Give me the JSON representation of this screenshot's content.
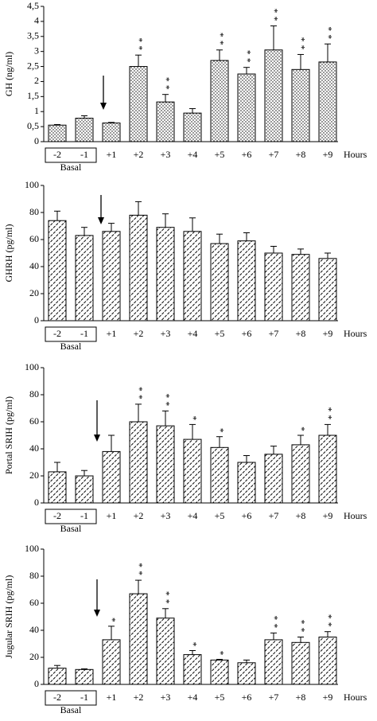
{
  "chart_data": [
    {
      "type": "bar",
      "y_label": "GH (ng/ml)",
      "x_label": "Hours",
      "group_label": "Basal",
      "pattern": "dots",
      "categories": [
        "-2",
        "-1",
        "+1",
        "+2",
        "+3",
        "+4",
        "+5",
        "+6",
        "+7",
        "+8",
        "+9"
      ],
      "values": [
        0.55,
        0.78,
        0.62,
        2.5,
        1.32,
        0.95,
        2.7,
        2.25,
        3.05,
        2.4,
        2.65
      ],
      "errors": [
        0.02,
        0.08,
        0.02,
        0.38,
        0.25,
        0.15,
        0.35,
        0.22,
        0.8,
        0.5,
        0.6
      ],
      "significance": [
        null,
        null,
        null,
        "**",
        "**",
        null,
        "**",
        "**",
        "**",
        "**",
        "**"
      ],
      "ylim": [
        0,
        4.5
      ],
      "yticks": [
        0,
        {
          "value": 0.5,
          "label": "0,5"
        },
        1,
        {
          "value": 1.5,
          "label": "1,5"
        },
        2,
        {
          "value": 2.5,
          "label": "2,5"
        },
        3,
        {
          "value": 3.5,
          "label": "3,5"
        },
        4,
        {
          "value": 4.5,
          "label": "4,5"
        }
      ]
    },
    {
      "type": "bar",
      "y_label": "GHRH (pg/ml)",
      "x_label": "Hours",
      "group_label": "Basal",
      "pattern": "dashes",
      "categories": [
        "-2",
        "-1",
        "+1",
        "+2",
        "+3",
        "+4",
        "+5",
        "+6",
        "+7",
        "+8",
        "+9"
      ],
      "values": [
        74,
        63,
        66,
        78,
        69,
        66,
        57,
        59,
        50,
        49,
        46
      ],
      "errors": [
        7,
        6,
        6,
        10,
        10,
        10,
        7,
        6,
        5,
        4,
        4
      ],
      "significance": [
        null,
        null,
        null,
        null,
        null,
        null,
        null,
        null,
        null,
        null,
        null
      ],
      "ylim": [
        0,
        100
      ],
      "yticks": [
        0,
        20,
        40,
        60,
        80,
        100
      ]
    },
    {
      "type": "bar",
      "y_label": "Portal SRIH (pg/ml)",
      "x_label": "Hours",
      "group_label": "Basal",
      "pattern": "dashes",
      "categories": [
        "-2",
        "-1",
        "+1",
        "+2",
        "+3",
        "+4",
        "+5",
        "+6",
        "+7",
        "+8",
        "+9"
      ],
      "values": [
        23,
        20,
        38,
        60,
        57,
        47,
        41,
        30,
        36,
        43,
        50
      ],
      "errors": [
        7,
        4,
        12,
        13,
        11,
        11,
        8,
        5,
        6,
        7,
        8
      ],
      "significance": [
        null,
        null,
        null,
        "**",
        "**",
        "*",
        "*",
        null,
        null,
        "*",
        "**"
      ],
      "ylim": [
        0,
        100
      ],
      "yticks": [
        0,
        20,
        40,
        60,
        80,
        100
      ]
    },
    {
      "type": "bar",
      "y_label": "Jugular SRIH (pg/ml)",
      "x_label": "Hours",
      "group_label": "Basal",
      "pattern": "dashes",
      "categories": [
        "-2",
        "-1",
        "+1",
        "+2",
        "+3",
        "+4",
        "+5",
        "+6",
        "+7",
        "+8",
        "+9"
      ],
      "values": [
        12,
        11,
        33,
        67,
        49,
        22,
        18,
        16,
        33,
        31,
        35
      ],
      "errors": [
        2,
        0.5,
        10,
        10,
        7,
        3,
        0.5,
        2,
        5,
        4,
        4
      ],
      "significance": [
        null,
        null,
        "*",
        "**",
        "**",
        "*",
        "*",
        null,
        "**",
        "**",
        "**"
      ],
      "ylim": [
        0,
        100
      ],
      "yticks": [
        0,
        20,
        40,
        60,
        80,
        100
      ]
    }
  ]
}
